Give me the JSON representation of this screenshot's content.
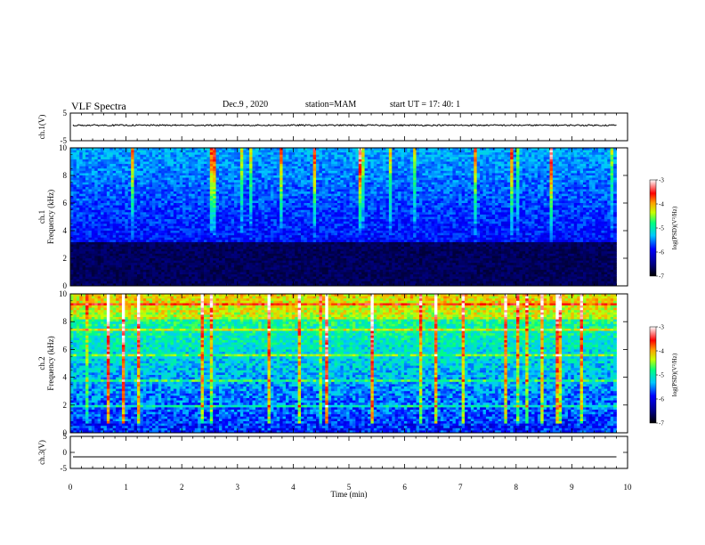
{
  "header": {
    "title": "VLF Spectra",
    "date": "Dec.9  , 2020",
    "station": "station=MAM",
    "start": "start  UT  =    17: 40: 1"
  },
  "colors": {
    "spectrogram_background": "#000000",
    "trace": "#000000"
  },
  "chart_data": [
    {
      "type": "line",
      "panel": "ch1-waveform",
      "ylabel": "ch.1(V)",
      "ylim": [
        -5,
        5
      ],
      "yticks": [
        "5",
        "-5"
      ],
      "xlim": [
        0,
        10
      ],
      "series": [
        {
          "note_level": 0.6,
          "values_approx_constant": 0.6
        }
      ]
    },
    {
      "type": "heatmap",
      "panel": "ch1-spectrogram",
      "ylabel_line1": "ch.1",
      "ylabel_line2": "Frequency  (kHz)",
      "ylim": [
        0,
        10
      ],
      "yticks": [
        "0",
        "2",
        "4",
        "6",
        "8",
        "10"
      ],
      "xlim": [
        0,
        9.8
      ],
      "colorbar": {
        "label": "log(PSD)(V²/Hz)",
        "range": [
          -7,
          -3
        ],
        "ticks": [
          "-3",
          "-4",
          "-5",
          "-6",
          "-7"
        ]
      }
    },
    {
      "type": "heatmap",
      "panel": "ch2-spectrogram",
      "ylabel_line1": "ch.2",
      "ylabel_line2": "Frequency  (kHz)",
      "ylim": [
        0,
        10
      ],
      "yticks": [
        "0",
        "2",
        "4",
        "6",
        "8",
        "10"
      ],
      "xlim": [
        0,
        9.8
      ],
      "colorbar": {
        "label": "log(PSD)(V²/Hz)",
        "range": [
          -7,
          -3
        ],
        "ticks": [
          "-3",
          "-4",
          "-5",
          "-6",
          "-7"
        ]
      }
    },
    {
      "type": "line",
      "panel": "ch3-waveform",
      "ylabel": "ch.3(V)",
      "ylim": [
        -5,
        5
      ],
      "yticks": [
        "5",
        "0",
        "-5"
      ],
      "xlim": [
        0,
        10
      ],
      "series": [
        {
          "values_approx_constant": -1.4
        }
      ]
    }
  ],
  "xaxis": {
    "label": "Time  (min)",
    "ticks": [
      "0",
      "1",
      "2",
      "3",
      "4",
      "5",
      "6",
      "7",
      "8",
      "9",
      "10"
    ]
  }
}
